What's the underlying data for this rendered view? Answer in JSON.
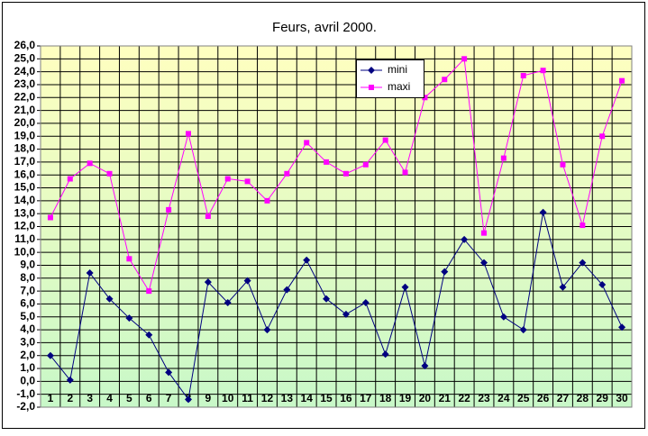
{
  "chart_data": {
    "type": "line",
    "title": "Feurs, avril 2000.",
    "categories": [
      "1",
      "2",
      "3",
      "4",
      "5",
      "6",
      "7",
      "8",
      "9",
      "10",
      "11",
      "12",
      "13",
      "14",
      "15",
      "16",
      "17",
      "18",
      "19",
      "20",
      "21",
      "22",
      "23",
      "24",
      "25",
      "26",
      "27",
      "28",
      "29",
      "30"
    ],
    "series": [
      {
        "name": "mini",
        "color": "#000080",
        "marker": "diamond",
        "values": [
          2.0,
          0.1,
          8.4,
          6.4,
          4.9,
          3.6,
          0.7,
          -1.4,
          7.7,
          6.1,
          7.8,
          4.0,
          7.1,
          9.4,
          6.4,
          5.2,
          6.1,
          2.1,
          7.3,
          1.2,
          8.5,
          11.0,
          9.2,
          5.0,
          4.0,
          13.1,
          7.3,
          9.2,
          7.5,
          4.2
        ]
      },
      {
        "name": "maxi",
        "color": "#ff00ff",
        "marker": "square",
        "values": [
          12.7,
          15.7,
          16.9,
          16.1,
          9.5,
          7.0,
          13.3,
          19.2,
          12.8,
          15.7,
          15.5,
          14.0,
          16.1,
          18.5,
          17.0,
          16.1,
          16.8,
          18.7,
          16.2,
          22.0,
          23.4,
          25.0,
          11.5,
          17.3,
          23.7,
          24.1,
          16.8,
          12.1,
          19.0,
          23.3
        ]
      }
    ],
    "ylim": [
      -2,
      26
    ],
    "yticks": [
      {
        "value": -2,
        "label": "-2,0"
      },
      {
        "value": -1,
        "label": "-1,0"
      },
      {
        "value": 0,
        "label": "0,0"
      },
      {
        "value": 1,
        "label": "1,0"
      },
      {
        "value": 2,
        "label": "2,0"
      },
      {
        "value": 3,
        "label": "3,0"
      },
      {
        "value": 4,
        "label": "4,0"
      },
      {
        "value": 5,
        "label": "5,0"
      },
      {
        "value": 6,
        "label": "6,0"
      },
      {
        "value": 7,
        "label": "7,0"
      },
      {
        "value": 8,
        "label": "8,0"
      },
      {
        "value": 9,
        "label": "9,0"
      },
      {
        "value": 10,
        "label": "10,0"
      },
      {
        "value": 11,
        "label": "11,0"
      },
      {
        "value": 12,
        "label": "12,0"
      },
      {
        "value": 13,
        "label": "13,0"
      },
      {
        "value": 14,
        "label": "14,0"
      },
      {
        "value": 15,
        "label": "15,0"
      },
      {
        "value": 16,
        "label": "16,0"
      },
      {
        "value": 17,
        "label": "17,0"
      },
      {
        "value": 18,
        "label": "18,0"
      },
      {
        "value": 19,
        "label": "19,0"
      },
      {
        "value": 20,
        "label": "20,0"
      },
      {
        "value": 21,
        "label": "21,0"
      },
      {
        "value": 22,
        "label": "22,0"
      },
      {
        "value": 23,
        "label": "23,0"
      },
      {
        "value": 24,
        "label": "24,0"
      },
      {
        "value": 25,
        "label": "25,0"
      },
      {
        "value": 26,
        "label": "26,0"
      }
    ],
    "grid": true
  }
}
